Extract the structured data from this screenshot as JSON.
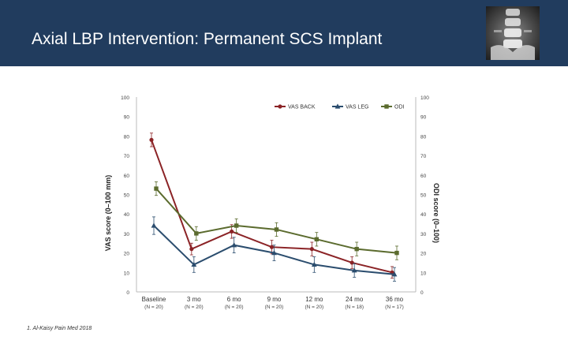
{
  "slide": {
    "title": "Axial LBP Intervention: Permanent SCS Implant",
    "footnote": "1. Al-Kaisy Pain Med 2018"
  },
  "chart_data": {
    "type": "line",
    "categories": [
      {
        "label": "Baseline",
        "n": "(N = 20)"
      },
      {
        "label": "3 mo",
        "n": "(N = 20)"
      },
      {
        "label": "6 mo",
        "n": "(N = 20)"
      },
      {
        "label": "9 mo",
        "n": "(N = 20)"
      },
      {
        "label": "12 mo",
        "n": "(N = 20)"
      },
      {
        "label": "24 mo",
        "n": "(N = 18)"
      },
      {
        "label": "36 mo",
        "n": "(N = 17)"
      }
    ],
    "ylabel_left": "VAS score (0–100 mm)",
    "ylabel_right": "ODI score (0–100)",
    "ylim": [
      0,
      100
    ],
    "yticks": [
      "0",
      "10",
      "20",
      "30",
      "40",
      "50",
      "60",
      "70",
      "80",
      "90",
      "100"
    ],
    "legend_position": "top-right",
    "series": [
      {
        "name": "VAS BACK",
        "color": "#8b2326",
        "marker": "circle",
        "values": [
          78,
          22,
          31,
          23,
          22,
          15,
          10
        ],
        "errors": [
          3.5,
          3,
          3.5,
          3.5,
          3.5,
          3,
          3
        ]
      },
      {
        "name": "VAS LEG",
        "color": "#2b4d6e",
        "marker": "triangle",
        "values": [
          34,
          14,
          24,
          20,
          14,
          11,
          9
        ],
        "errors": [
          4.5,
          4,
          4,
          4,
          4,
          3.5,
          3.5
        ]
      },
      {
        "name": "ODI",
        "color": "#5b6b2e",
        "marker": "square",
        "values": [
          53,
          30,
          34,
          32,
          27,
          22,
          20
        ],
        "errors": [
          3.5,
          3.5,
          3.5,
          3.5,
          3.5,
          3.5,
          3.5
        ]
      }
    ]
  },
  "colors": {
    "header_bg": "#213c5e",
    "axis": "#cccccc"
  }
}
